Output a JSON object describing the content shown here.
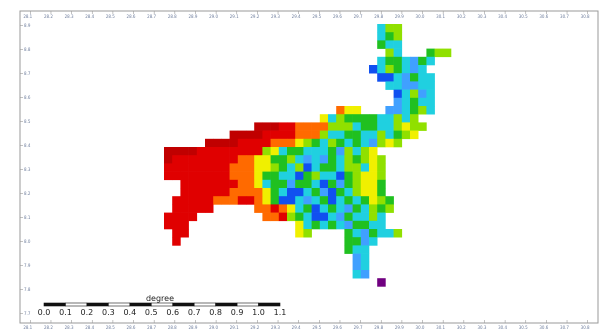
{
  "map": {
    "top_ticks": [
      "28.1",
      "28.2",
      "28.3",
      "28.4",
      "28.5",
      "28.6",
      "28.7",
      "28.8",
      "28.9",
      "29.0",
      "29.1",
      "29.2",
      "29.3",
      "29.4",
      "29.5",
      "29.6",
      "29.7",
      "29.8",
      "29.9",
      "30.0",
      "30.1",
      "30.2",
      "30.3",
      "30.4",
      "30.5",
      "30.6",
      "30.7",
      "30.8"
    ],
    "bottom_ticks": [
      "28.1",
      "28.2",
      "28.3",
      "28.4",
      "28.5",
      "28.6",
      "28.7",
      "28.8",
      "28.9",
      "29.0",
      "29.1",
      "29.2",
      "29.3",
      "29.4",
      "29.5",
      "29.6",
      "29.7",
      "29.8",
      "29.9",
      "30.0",
      "30.1",
      "30.2",
      "30.3",
      "30.4",
      "30.5",
      "30.6",
      "30.7",
      "30.8"
    ],
    "left_ticks": [
      "8.9",
      "8.8",
      "8.7",
      "8.6",
      "8.5",
      "8.4",
      "8.3",
      "8.2",
      "8.1",
      "8.0",
      "7.9",
      "7.8",
      "7.7"
    ],
    "colors": {
      "red": "#e00000",
      "dark_red": "#c00000",
      "orange": "#ff6a00",
      "yellow": "#f0f000",
      "lime": "#90e000",
      "green": "#20c020",
      "cyan": "#20d0e0",
      "light_blue": "#40a0ff",
      "blue": "#1050f0",
      "purple": "#700080"
    }
  },
  "scale_bar": {
    "title": "degree",
    "labels": [
      "0.0",
      "0.1",
      "0.2",
      "0.3",
      "0.4",
      "0.5",
      "0.6",
      "0.7",
      "0.8",
      "0.9",
      "1.0",
      "1.1"
    ]
  }
}
